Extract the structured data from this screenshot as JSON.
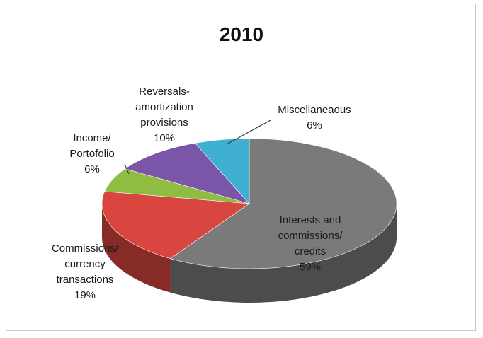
{
  "chart_data": {
    "type": "pie",
    "title": "2010",
    "three_d": true,
    "legend": "none",
    "slices": [
      {
        "label": [
          "Interests and",
          "commissions/",
          "credits"
        ],
        "value": 59,
        "value_label": "59%",
        "color": "#7a7a7a"
      },
      {
        "label": [
          "Commissions/",
          "currency",
          "transactions"
        ],
        "value": 19,
        "value_label": "19%",
        "color": "#d9453f"
      },
      {
        "label": [
          "Income/",
          "Portofolio"
        ],
        "value": 6,
        "value_label": "6%",
        "color": "#8fbd43"
      },
      {
        "label": [
          "Reversals-",
          "amortization",
          "provisions"
        ],
        "value": 10,
        "value_label": "10%",
        "color": "#7b55a8"
      },
      {
        "label": [
          "Miscellaneaous"
        ],
        "value": 6,
        "value_label": "6%",
        "color": "#3fb0d3"
      }
    ]
  }
}
